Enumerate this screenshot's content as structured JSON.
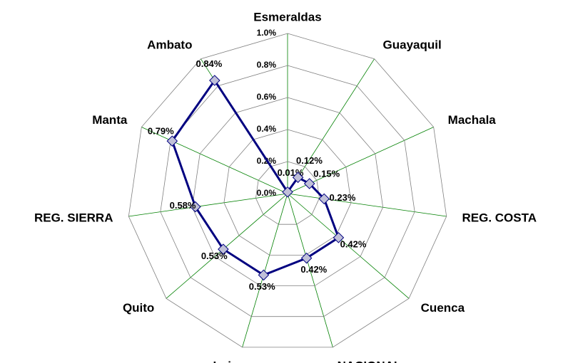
{
  "chart_data": {
    "type": "radar",
    "categories": [
      "Esmeraldas",
      "Guayaquil",
      "Machala",
      "REG. COSTA",
      "Cuenca",
      "NACIONAL",
      "Loja",
      "Quito",
      "REG. SIERRA",
      "Manta",
      "Ambato"
    ],
    "series": [
      {
        "color": "#000080",
        "marker_color": "#c0c0d8",
        "values": [
          0.01,
          0.12,
          0.15,
          0.23,
          0.42,
          0.42,
          0.53,
          0.53,
          0.58,
          0.79,
          0.84
        ],
        "value_labels": [
          "0.01%",
          "0.12%",
          "0.15%",
          "0.23%",
          "0.42%",
          "0.42%",
          "0.53%",
          "0.53%",
          "0.58%",
          "0.79%",
          "0.84%"
        ]
      }
    ],
    "ylim": [
      0,
      1.0
    ],
    "yticks": [
      {
        "value": 0,
        "label": "0.0%"
      },
      {
        "value": 0.2,
        "label": "0.2%"
      },
      {
        "value": 0.4,
        "label": "0.4%"
      },
      {
        "value": 0.6,
        "label": "0.6%"
      },
      {
        "value": 0.8,
        "label": "0.8%"
      },
      {
        "value": 1.0,
        "label": "1.0%"
      }
    ],
    "grid": true
  }
}
